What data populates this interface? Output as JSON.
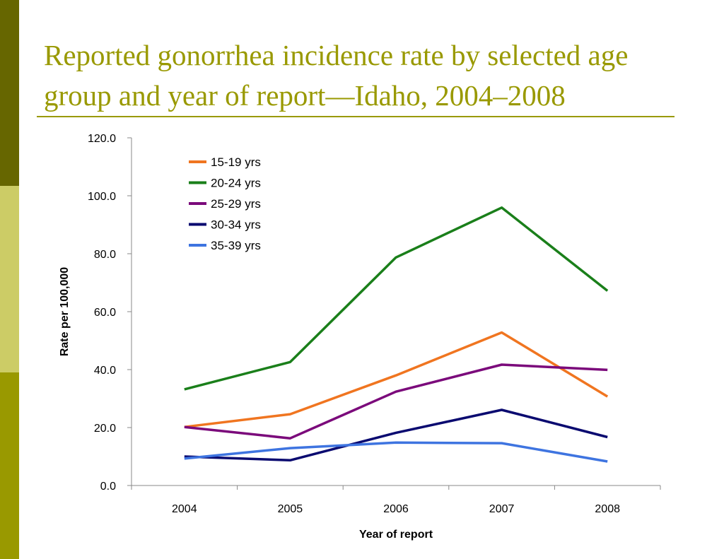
{
  "slide": {
    "title": "Reported gonorrhea incidence rate by selected age group and year of report—Idaho, 2004–2008",
    "colors": {
      "title": "#999900",
      "rule": "#999900",
      "side_bar_top": "#666600",
      "side_bar_mid": "#cccc66",
      "side_bar_bot": "#999900"
    }
  },
  "chart_data": {
    "type": "line",
    "title": "",
    "xlabel": "Year of report",
    "ylabel": "Rate per 100,000",
    "categories": [
      "2004",
      "2005",
      "2006",
      "2007",
      "2008"
    ],
    "ylim": [
      0,
      120
    ],
    "ytick_labels": [
      "0.0",
      "20.0",
      "40.0",
      "60.0",
      "80.0",
      "100.0",
      "120.0"
    ],
    "grid": false,
    "legend_position": "top-left inside plot",
    "series": [
      {
        "name": "15-19 yrs",
        "color": "#f07520",
        "values": [
          20.2,
          24.6,
          38.0,
          52.8,
          30.7
        ]
      },
      {
        "name": "20-24 yrs",
        "color": "#1a7f1a",
        "values": [
          33.2,
          42.6,
          78.7,
          95.9,
          67.2
        ]
      },
      {
        "name": "25-29 yrs",
        "color": "#7b0a7b",
        "values": [
          20.2,
          16.3,
          32.4,
          41.7,
          39.9
        ]
      },
      {
        "name": "30-34 yrs",
        "color": "#0a0a70",
        "values": [
          10.0,
          8.7,
          18.2,
          26.1,
          16.7
        ]
      },
      {
        "name": "35-39 yrs",
        "color": "#3e74e0",
        "values": [
          9.3,
          12.9,
          14.8,
          14.6,
          8.3
        ]
      }
    ]
  }
}
